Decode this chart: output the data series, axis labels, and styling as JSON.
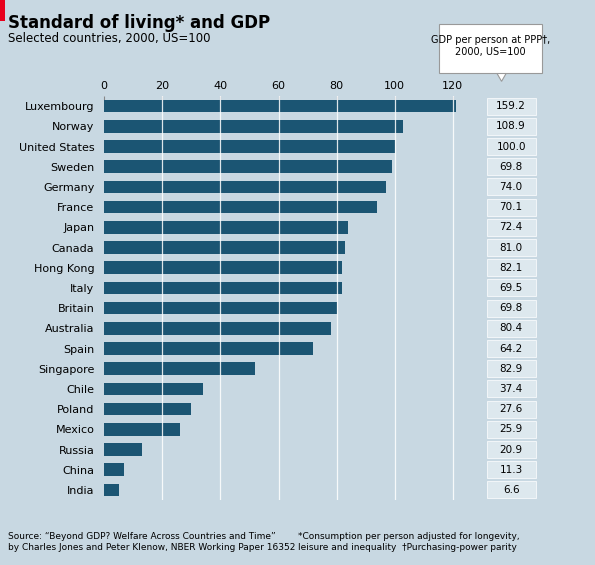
{
  "title": "Standard of living* and GDP",
  "subtitle": "Selected countries, 2000, US=100",
  "countries": [
    "Luxembourg",
    "Norway",
    "United States",
    "Sweden",
    "Germany",
    "France",
    "Japan",
    "Canada",
    "Hong Kong",
    "Italy",
    "Britain",
    "Australia",
    "Spain",
    "Singapore",
    "Chile",
    "Poland",
    "Mexico",
    "Russia",
    "China",
    "India"
  ],
  "welfare_values": [
    121,
    103,
    100,
    99,
    97,
    94,
    84,
    83,
    82,
    82,
    80,
    78,
    72,
    52,
    34,
    30,
    26,
    13,
    7,
    5
  ],
  "gdp_values": [
    159.2,
    108.9,
    100.0,
    69.8,
    74.0,
    70.1,
    72.4,
    81.0,
    82.1,
    69.5,
    69.8,
    80.4,
    64.2,
    82.9,
    37.4,
    27.6,
    25.9,
    20.9,
    11.3,
    6.6
  ],
  "bar_color": "#1b5573",
  "background_color": "#c8d8e2",
  "text_color": "#000000",
  "gdp_box_color": "#dde8ee",
  "xlim": [
    0,
    130
  ],
  "xticks": [
    0,
    20,
    40,
    60,
    80,
    100,
    120
  ],
  "annotation_box_text": "GDP per person at PPP†,\n2000, US=100",
  "source_text": "Source: “Beyond GDP? Welfare Across Countries and Time”\nby Charles Jones and Peter Klenow, NBER Working Paper 16352",
  "footnote_text": "*Consumption per person adjusted for longevity,\nleisure and inequality  †Purchasing-power parity",
  "title_fontsize": 12,
  "subtitle_fontsize": 8.5,
  "label_fontsize": 8,
  "tick_fontsize": 8,
  "gdp_fontsize": 7.5,
  "source_fontsize": 6.5
}
